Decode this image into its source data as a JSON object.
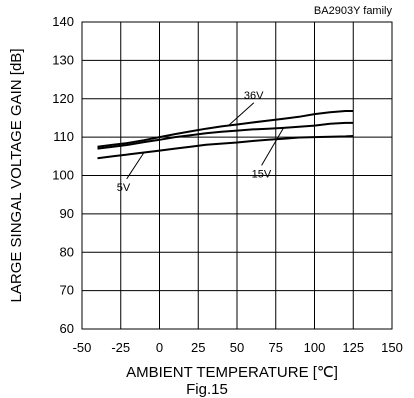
{
  "chart_data": {
    "type": "line",
    "annotation": "BA2903Y family",
    "xlabel": "AMBIENT TEMPERATURE [℃]",
    "ylabel": "LARGE SINGAL VOLTAGE GAIN [dB]",
    "xlim": [
      -50,
      150
    ],
    "ylim": [
      60,
      140
    ],
    "xticks": [
      -50,
      -25,
      0,
      25,
      50,
      75,
      100,
      125,
      150
    ],
    "yticks": [
      60,
      70,
      80,
      90,
      100,
      110,
      120,
      130,
      140
    ],
    "grid": true,
    "x": [
      -40,
      -30,
      -20,
      -10,
      0,
      10,
      20,
      30,
      40,
      50,
      60,
      70,
      80,
      90,
      100,
      110,
      120,
      125
    ],
    "series": [
      {
        "name": "36V",
        "values": [
          107.5,
          108,
          108.5,
          109.2,
          110,
          110.8,
          111.5,
          112.2,
          112.8,
          113.3,
          113.8,
          114.3,
          114.8,
          115.3,
          116,
          116.5,
          116.8,
          116.8
        ]
      },
      {
        "name": "15V",
        "values": [
          107,
          107.5,
          108,
          108.7,
          109.3,
          110,
          110.5,
          111,
          111.4,
          111.7,
          112,
          112.2,
          112.4,
          112.7,
          113,
          113.5,
          113.7,
          113.7
        ]
      },
      {
        "name": "5V",
        "values": [
          104.5,
          105,
          105.5,
          106,
          106.5,
          107,
          107.5,
          108,
          108.3,
          108.6,
          109,
          109.3,
          109.6,
          109.9,
          110,
          110.1,
          110.2,
          110.3
        ]
      }
    ],
    "labels": [
      {
        "text": "36V",
        "x": 57,
        "y": 120,
        "point_x": 45,
        "point_y": 113.2
      },
      {
        "text": "15V",
        "x": 62,
        "y": 99.5,
        "point_x": 80,
        "point_y": 112.4
      },
      {
        "text": "5V",
        "x": -25,
        "y": 96,
        "point_x": -10,
        "point_y": 106
      }
    ]
  },
  "caption": "Fig.15"
}
